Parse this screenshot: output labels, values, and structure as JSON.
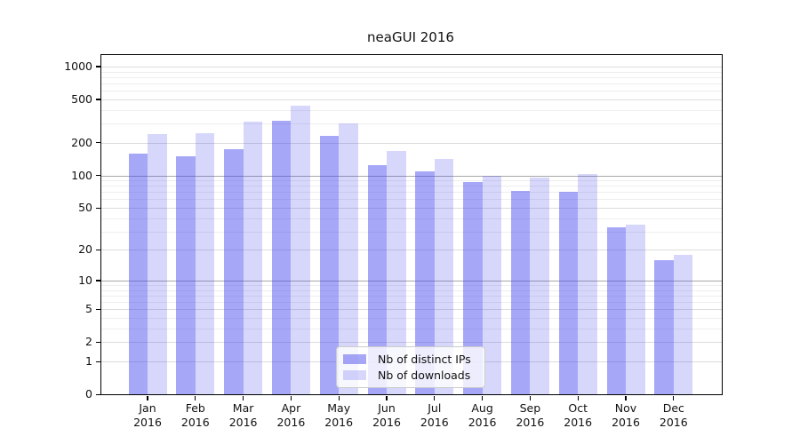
{
  "figure": {
    "background": "#ffffff"
  },
  "chart_data": {
    "type": "bar",
    "title": "neaGUI 2016",
    "categories": [
      "Jan 2016",
      "Feb 2016",
      "Mar 2016",
      "Apr 2016",
      "May 2016",
      "Jun 2016",
      "Jul 2016",
      "Aug 2016",
      "Sep 2016",
      "Oct 2016",
      "Nov 2016",
      "Dec 2016"
    ],
    "series": [
      {
        "name": "Nb of distinct IPs",
        "color": "#4444ee",
        "alpha": 0.47,
        "values": [
          160,
          150,
          175,
          320,
          230,
          125,
          108,
          86,
          72,
          70,
          33,
          16
        ]
      },
      {
        "name": "Nb of downloads",
        "color": "#4444ee",
        "alpha": 0.21,
        "values": [
          240,
          245,
          315,
          440,
          300,
          168,
          142,
          100,
          95,
          102,
          35,
          18
        ]
      }
    ],
    "xlabel": "",
    "ylabel": "",
    "y_scale": "log10(1+v)",
    "ylim": [
      0,
      1276
    ],
    "y_ticks": [
      1000,
      500,
      200,
      100,
      50,
      20,
      10,
      5,
      2,
      1,
      0
    ],
    "y_minor_ticks": [
      3,
      4,
      6,
      7,
      8,
      9,
      30,
      40,
      60,
      70,
      80,
      90,
      300,
      400,
      600,
      700,
      800,
      900
    ],
    "y_emphasized_gridlines": [
      10,
      100
    ],
    "grid": true,
    "legend_position": "lower-center",
    "style": {
      "bar_fill_dark": "#a7a7f8",
      "bar_fill_light": "#d9d9f9",
      "grid_major": "#dcdcdc",
      "grid_minor": "#eeeeee",
      "grid_emphasized": "#a8a8a8",
      "spine": "#000000",
      "text": "#111111",
      "legend_border": "#cccccc"
    }
  }
}
